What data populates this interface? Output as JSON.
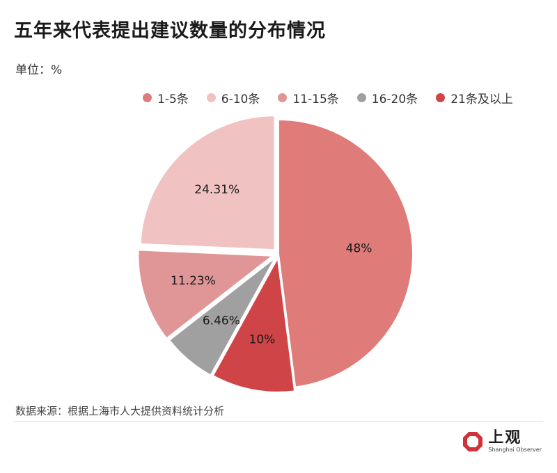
{
  "title": "五年来代表提出建议数量的分布情况",
  "unit": "单位：%",
  "source": "数据来源：根据上海市人大提供资料统计分析",
  "brand": {
    "name_cn": "上观",
    "name_en": "Shanghai Observer",
    "logo_icon": "octagon-logo-icon",
    "color": "#d0323a"
  },
  "chart_data": {
    "type": "pie",
    "title": "五年来代表提出建议数量的分布情况",
    "unit": "%",
    "categories": [
      "1-5条",
      "6-10条",
      "11-15条",
      "16-20条",
      "21条及以上"
    ],
    "values": [
      48,
      24.31,
      11.23,
      6.46,
      10
    ],
    "labels": [
      "48%",
      "24.31%",
      "11.23%",
      "6.46%",
      "10%"
    ],
    "colors": [
      "#df7b78",
      "#f0c2c1",
      "#e09697",
      "#a0a0a0",
      "#cf4447"
    ],
    "order_clockwise_from_top": [
      "1-5条",
      "21条及以上",
      "16-20条",
      "11-15条",
      "6-10条"
    ],
    "legend_position": "top-right"
  }
}
